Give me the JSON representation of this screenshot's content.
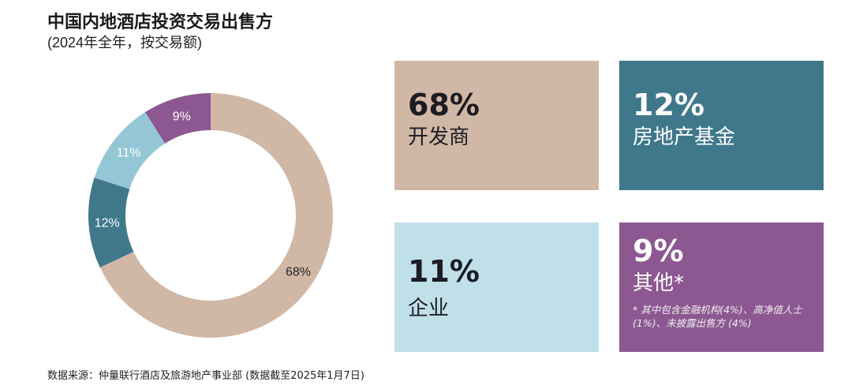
{
  "title": "中国内地酒店投资交易出售方",
  "subtitle": "(2024年全年，按交易额)",
  "chart_data": {
    "type": "pie",
    "donut": true,
    "categories": [
      "开发商",
      "房地产基金",
      "企业",
      "其他*"
    ],
    "values": [
      68,
      12,
      11,
      9
    ],
    "data_labels": [
      "68%",
      "12%",
      "11%",
      "9%"
    ],
    "colors": [
      "#d1b8a6",
      "#3f788b",
      "#95c6d6",
      "#8d5892"
    ]
  },
  "cards": [
    {
      "pct": "68%",
      "label": "开发商",
      "bg": "#d1b8a6",
      "fg": "#1c1c24"
    },
    {
      "pct": "12%",
      "label": "房地产基金",
      "bg": "#3f788b",
      "fg": "#ffffff"
    },
    {
      "pct": "11%",
      "label": "企业",
      "bg": "#bfe0e8",
      "fg": "#1c1c24"
    },
    {
      "pct": "9%",
      "label": "其他*",
      "bg": "#8d5892",
      "fg": "#ffffff",
      "note": "* 其中包含金融机构(4%)、高净值人士 (1%)、未披露出售方 (4%)"
    }
  ],
  "source": "数据来源：仲量联行酒店及旅游地产事业部 (数据截至2025年1月7日)"
}
